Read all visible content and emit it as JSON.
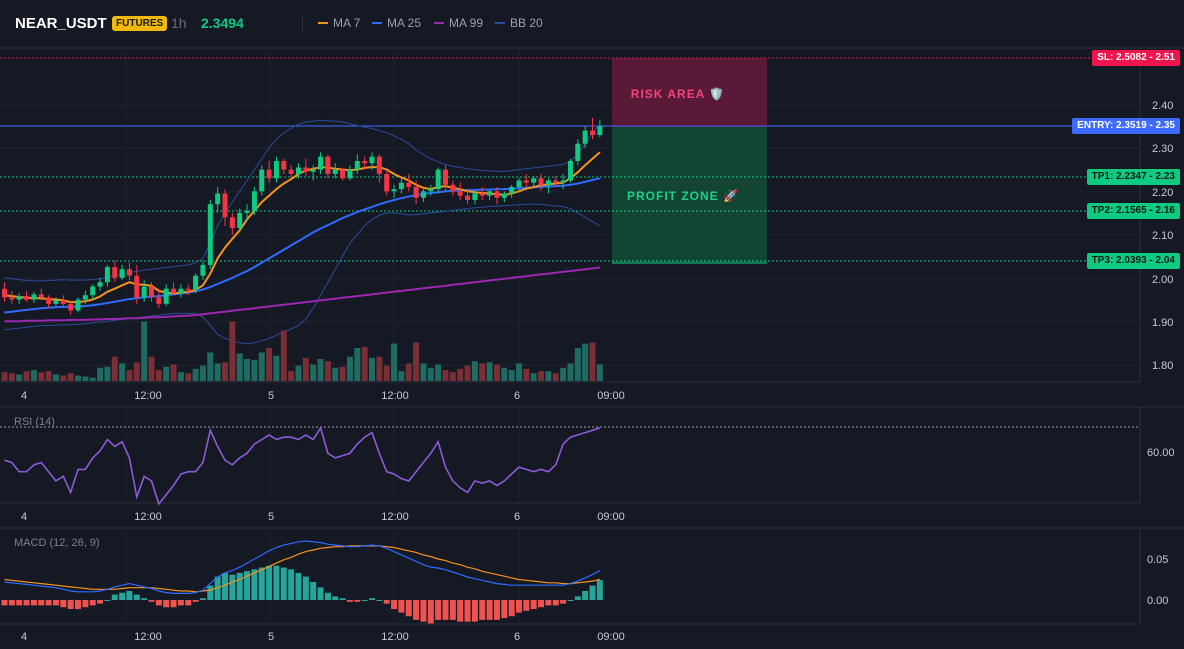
{
  "header": {
    "symbol": "NEAR_USDT",
    "badge": "FUTURES",
    "timeframe": "1h",
    "last_price": "2.3494",
    "indicators": [
      {
        "label": "MA 7",
        "color": "#f7931a"
      },
      {
        "label": "MA 25",
        "color": "#2f6bff"
      },
      {
        "label": "MA 99",
        "color": "#9c27b0"
      },
      {
        "label": "BB 20",
        "color": "#2a4c9a"
      }
    ]
  },
  "colors": {
    "up": "#26a69a",
    "up_bright": "#0ecb81",
    "down": "#f23645",
    "entry": "#3d6bff",
    "sl": "#f0144f",
    "tp": "#0ecb81"
  },
  "price_axis": {
    "ticks": [
      "2.40",
      "2.30",
      "2.20",
      "2.10",
      "2.00",
      "1.90",
      "1.80"
    ]
  },
  "time_axis": {
    "ticks": [
      "4",
      "12:00",
      "5",
      "12:00",
      "6",
      "09:00"
    ]
  },
  "levels": {
    "sl": "SL: 2.5082 - 2.51",
    "entry": "ENTRY: 2.3519 - 2.35",
    "tp1": "TP1: 2.2347 - 2.23",
    "tp2": "TP2: 2.1565 - 2.16",
    "tp3": "TP3: 2.0393 - 2.04"
  },
  "zones": {
    "risk": "RISK AREA 🛡️",
    "profit": "PROFIT ZONE 🚀"
  },
  "rsi": {
    "title": "RSI (14)",
    "tick": "60.00"
  },
  "macd": {
    "title": "MACD (12, 26, 9)",
    "ticks": [
      "0.05",
      "0.00"
    ]
  },
  "chart_data": {
    "type": "candlestick",
    "candles": [
      [
        1.975,
        1.99,
        1.945,
        1.955
      ],
      [
        1.955,
        1.97,
        1.94,
        1.95
      ],
      [
        1.95,
        1.965,
        1.94,
        1.958
      ],
      [
        1.958,
        1.97,
        1.945,
        1.95
      ],
      [
        1.95,
        1.968,
        1.942,
        1.962
      ],
      [
        1.962,
        1.975,
        1.948,
        1.955
      ],
      [
        1.955,
        1.96,
        1.93,
        1.94
      ],
      [
        1.94,
        1.955,
        1.935,
        1.948
      ],
      [
        1.948,
        1.96,
        1.935,
        1.94
      ],
      [
        1.94,
        1.945,
        1.915,
        1.925
      ],
      [
        1.925,
        1.955,
        1.92,
        1.95
      ],
      [
        1.95,
        1.97,
        1.94,
        1.96
      ],
      [
        1.96,
        1.985,
        1.95,
        1.98
      ],
      [
        1.98,
        2.0,
        1.97,
        1.99
      ],
      [
        1.99,
        2.03,
        1.98,
        2.025
      ],
      [
        2.025,
        2.04,
        1.99,
        2.0
      ],
      [
        2.0,
        2.03,
        1.995,
        2.02
      ],
      [
        2.02,
        2.035,
        1.995,
        2.005
      ],
      [
        2.005,
        2.03,
        1.94,
        1.955
      ],
      [
        1.955,
        1.995,
        1.945,
        1.98
      ],
      [
        1.98,
        1.99,
        1.945,
        1.955
      ],
      [
        1.955,
        1.975,
        1.93,
        1.94
      ],
      [
        1.94,
        1.985,
        1.935,
        1.975
      ],
      [
        1.975,
        1.99,
        1.96,
        1.965
      ],
      [
        1.965,
        1.985,
        1.955,
        1.975
      ],
      [
        1.975,
        1.985,
        1.96,
        1.972
      ],
      [
        1.972,
        2.01,
        1.965,
        2.005
      ],
      [
        2.005,
        2.04,
        1.995,
        2.03
      ],
      [
        2.03,
        2.18,
        2.02,
        2.17
      ],
      [
        2.17,
        2.21,
        2.15,
        2.195
      ],
      [
        2.195,
        2.205,
        2.12,
        2.14
      ],
      [
        2.14,
        2.15,
        2.1,
        2.115
      ],
      [
        2.115,
        2.16,
        2.105,
        2.15
      ],
      [
        2.15,
        2.17,
        2.13,
        2.155
      ],
      [
        2.155,
        2.21,
        2.145,
        2.2
      ],
      [
        2.2,
        2.26,
        2.19,
        2.25
      ],
      [
        2.25,
        2.27,
        2.22,
        2.23
      ],
      [
        2.23,
        2.28,
        2.22,
        2.27
      ],
      [
        2.27,
        2.275,
        2.24,
        2.25
      ],
      [
        2.25,
        2.26,
        2.23,
        2.24
      ],
      [
        2.24,
        2.265,
        2.23,
        2.255
      ],
      [
        2.255,
        2.275,
        2.235,
        2.245
      ],
      [
        2.245,
        2.26,
        2.225,
        2.25
      ],
      [
        2.25,
        2.29,
        2.24,
        2.28
      ],
      [
        2.28,
        2.285,
        2.23,
        2.24
      ],
      [
        2.24,
        2.265,
        2.23,
        2.25
      ],
      [
        2.25,
        2.255,
        2.225,
        2.23
      ],
      [
        2.23,
        2.26,
        2.225,
        2.25
      ],
      [
        2.25,
        2.285,
        2.24,
        2.27
      ],
      [
        2.27,
        2.28,
        2.25,
        2.265
      ],
      [
        2.265,
        2.29,
        2.25,
        2.28
      ],
      [
        2.28,
        2.285,
        2.22,
        2.24
      ],
      [
        2.24,
        2.25,
        2.19,
        2.2
      ],
      [
        2.2,
        2.215,
        2.185,
        2.205
      ],
      [
        2.205,
        2.23,
        2.195,
        2.22
      ],
      [
        2.22,
        2.24,
        2.2,
        2.21
      ],
      [
        2.21,
        2.225,
        2.17,
        2.185
      ],
      [
        2.185,
        2.205,
        2.175,
        2.2
      ],
      [
        2.2,
        2.215,
        2.19,
        2.205
      ],
      [
        2.205,
        2.255,
        2.195,
        2.25
      ],
      [
        2.25,
        2.26,
        2.2,
        2.215
      ],
      [
        2.215,
        2.225,
        2.19,
        2.2
      ],
      [
        2.2,
        2.22,
        2.18,
        2.19
      ],
      [
        2.19,
        2.205,
        2.17,
        2.18
      ],
      [
        2.18,
        2.2,
        2.17,
        2.195
      ],
      [
        2.195,
        2.21,
        2.18,
        2.19
      ],
      [
        2.19,
        2.205,
        2.18,
        2.2
      ],
      [
        2.2,
        2.21,
        2.17,
        2.185
      ],
      [
        2.185,
        2.2,
        2.175,
        2.195
      ],
      [
        2.195,
        2.215,
        2.185,
        2.21
      ],
      [
        2.21,
        2.23,
        2.2,
        2.225
      ],
      [
        2.225,
        2.24,
        2.21,
        2.22
      ],
      [
        2.22,
        2.235,
        2.21,
        2.23
      ],
      [
        2.23,
        2.24,
        2.2,
        2.215
      ],
      [
        2.215,
        2.23,
        2.195,
        2.225
      ],
      [
        2.225,
        2.235,
        2.21,
        2.22
      ],
      [
        2.22,
        2.24,
        2.205,
        2.225
      ],
      [
        2.225,
        2.275,
        2.22,
        2.27
      ],
      [
        2.27,
        2.32,
        2.26,
        2.31
      ],
      [
        2.31,
        2.35,
        2.3,
        2.34
      ],
      [
        2.34,
        2.37,
        2.32,
        2.33
      ],
      [
        2.33,
        2.365,
        2.325,
        2.35
      ]
    ],
    "volume": [
      8,
      7,
      6,
      9,
      10,
      8,
      9,
      6,
      5,
      7,
      5,
      4,
      3,
      12,
      13,
      22,
      16,
      10,
      17,
      54,
      22,
      10,
      13,
      15,
      8,
      7,
      11,
      14,
      26,
      16,
      17,
      54,
      25,
      20,
      19,
      26,
      30,
      23,
      46,
      9,
      14,
      21,
      15,
      20,
      18,
      12,
      13,
      22,
      30,
      31,
      21,
      22,
      14,
      34,
      9,
      16,
      35,
      16,
      12,
      15,
      10,
      8,
      11,
      14,
      18,
      16,
      17,
      15,
      12,
      10,
      16,
      11,
      7,
      9,
      9,
      7,
      12,
      16,
      30,
      34,
      35,
      15
    ],
    "ma7": [
      1.96,
      1.958,
      1.956,
      1.954,
      1.953,
      1.953,
      1.951,
      1.95,
      1.948,
      1.944,
      1.944,
      1.946,
      1.95,
      1.957,
      1.968,
      1.975,
      1.983,
      1.99,
      1.985,
      1.984,
      1.982,
      1.97,
      1.966,
      1.964,
      1.966,
      1.968,
      1.972,
      1.983,
      2.01,
      2.045,
      2.07,
      2.09,
      2.11,
      2.135,
      2.155,
      2.175,
      2.19,
      2.205,
      2.218,
      2.228,
      2.24,
      2.248,
      2.252,
      2.256,
      2.255,
      2.252,
      2.25,
      2.249,
      2.25,
      2.254,
      2.256,
      2.256,
      2.25,
      2.24,
      2.232,
      2.225,
      2.215,
      2.208,
      2.205,
      2.21,
      2.212,
      2.208,
      2.205,
      2.2,
      2.198,
      2.196,
      2.195,
      2.193,
      2.192,
      2.195,
      2.2,
      2.206,
      2.21,
      2.214,
      2.216,
      2.218,
      2.22,
      2.23,
      2.244,
      2.26,
      2.275,
      2.29
    ],
    "ma25": [
      1.92,
      1.922,
      1.924,
      1.926,
      1.928,
      1.93,
      1.931,
      1.932,
      1.933,
      1.933,
      1.934,
      1.935,
      1.937,
      1.939,
      1.942,
      1.945,
      1.948,
      1.951,
      1.953,
      1.955,
      1.957,
      1.958,
      1.96,
      1.962,
      1.964,
      1.966,
      1.969,
      1.973,
      1.979,
      1.986,
      1.993,
      2.0,
      2.008,
      2.016,
      2.025,
      2.035,
      2.045,
      2.055,
      2.065,
      2.075,
      2.085,
      2.095,
      2.105,
      2.114,
      2.122,
      2.13,
      2.138,
      2.145,
      2.152,
      2.158,
      2.164,
      2.17,
      2.175,
      2.18,
      2.184,
      2.188,
      2.191,
      2.194,
      2.196,
      2.198,
      2.2,
      2.201,
      2.202,
      2.203,
      2.203,
      2.204,
      2.204,
      2.205,
      2.205,
      2.206,
      2.207,
      2.208,
      2.209,
      2.21,
      2.211,
      2.212,
      2.213,
      2.215,
      2.218,
      2.222,
      2.226,
      2.23
    ],
    "ma99": [
      1.9,
      1.9,
      1.9,
      1.901,
      1.901,
      1.901,
      1.902,
      1.902,
      1.902,
      1.903,
      1.903,
      1.903,
      1.904,
      1.904,
      1.905,
      1.905,
      1.906,
      1.907,
      1.907,
      1.908,
      1.909,
      1.909,
      1.91,
      1.911,
      1.912,
      1.913,
      1.914,
      1.916,
      1.918,
      1.92,
      1.922,
      1.924,
      1.926,
      1.928,
      1.93,
      1.932,
      1.934,
      1.936,
      1.938,
      1.94,
      1.942,
      1.944,
      1.946,
      1.948,
      1.95,
      1.952,
      1.954,
      1.956,
      1.958,
      1.96,
      1.962,
      1.964,
      1.966,
      1.968,
      1.97,
      1.972,
      1.974,
      1.976,
      1.978,
      1.98,
      1.982,
      1.984,
      1.986,
      1.988,
      1.99,
      1.992,
      1.994,
      1.996,
      1.998,
      2.0,
      2.002,
      2.004,
      2.006,
      2.008,
      2.01,
      2.012,
      2.014,
      2.016,
      2.018,
      2.02,
      2.022,
      2.024
    ],
    "bb_upper": [
      2.0,
      1.998,
      1.996,
      1.994,
      1.993,
      1.993,
      1.994,
      1.995,
      1.996,
      1.995,
      1.995,
      1.995,
      1.996,
      1.998,
      2.002,
      2.005,
      2.009,
      2.013,
      2.015,
      2.018,
      2.02,
      2.022,
      2.024,
      2.026,
      2.028,
      2.03,
      2.035,
      2.045,
      2.08,
      2.12,
      2.15,
      2.175,
      2.2,
      2.225,
      2.25,
      2.275,
      2.3,
      2.32,
      2.335,
      2.345,
      2.355,
      2.36,
      2.362,
      2.364,
      2.363,
      2.362,
      2.36,
      2.356,
      2.352,
      2.348,
      2.345,
      2.34,
      2.335,
      2.328,
      2.32,
      2.31,
      2.295,
      2.285,
      2.275,
      2.268,
      2.262,
      2.258,
      2.255,
      2.252,
      2.25,
      2.248,
      2.247,
      2.246,
      2.246,
      2.248,
      2.25,
      2.252,
      2.254,
      2.256,
      2.258,
      2.26,
      2.262,
      2.27,
      2.285,
      2.31,
      2.335,
      2.355
    ],
    "bb_lower": [
      1.88,
      1.882,
      1.884,
      1.886,
      1.888,
      1.89,
      1.89,
      1.891,
      1.892,
      1.892,
      1.893,
      1.894,
      1.896,
      1.898,
      1.9,
      1.902,
      1.904,
      1.906,
      1.908,
      1.91,
      1.912,
      1.914,
      1.916,
      1.918,
      1.918,
      1.918,
      1.918,
      1.91,
      1.89,
      1.87,
      1.86,
      1.855,
      1.85,
      1.848,
      1.85,
      1.855,
      1.86,
      1.868,
      1.875,
      1.882,
      1.89,
      1.905,
      1.93,
      1.96,
      1.99,
      2.02,
      2.05,
      2.08,
      2.1,
      2.12,
      2.135,
      2.145,
      2.15,
      2.15,
      2.148,
      2.146,
      2.146,
      2.148,
      2.15,
      2.152,
      2.154,
      2.156,
      2.158,
      2.16,
      2.162,
      2.163,
      2.165,
      2.166,
      2.167,
      2.168,
      2.169,
      2.17,
      2.17,
      2.17,
      2.168,
      2.166,
      2.165,
      2.16,
      2.15,
      2.14,
      2.13,
      2.12
    ],
    "rsi": [
      59,
      58,
      54,
      54,
      57,
      58,
      54,
      50,
      52,
      45,
      55,
      55,
      60,
      63,
      68,
      65,
      67,
      60,
      43,
      52,
      50,
      40,
      44,
      48,
      53,
      54,
      54,
      58,
      72,
      65,
      59,
      57,
      60,
      62,
      66,
      68,
      70,
      68,
      69,
      69,
      68,
      70,
      68,
      73,
      62,
      60,
      61,
      62,
      66,
      69,
      71,
      62,
      54,
      53,
      51,
      50,
      54,
      58,
      62,
      67,
      56,
      50,
      47,
      45,
      50,
      49,
      50,
      48,
      50,
      53,
      56,
      55,
      54,
      55,
      54,
      57,
      66,
      69,
      70,
      71,
      72,
      73
    ],
    "macd": [
      0.022,
      0.021,
      0.02,
      0.019,
      0.018,
      0.017,
      0.016,
      0.015,
      0.013,
      0.011,
      0.01,
      0.01,
      0.01,
      0.011,
      0.013,
      0.016,
      0.018,
      0.02,
      0.018,
      0.016,
      0.014,
      0.011,
      0.009,
      0.008,
      0.008,
      0.008,
      0.009,
      0.012,
      0.02,
      0.028,
      0.033,
      0.036,
      0.04,
      0.045,
      0.05,
      0.055,
      0.06,
      0.064,
      0.067,
      0.069,
      0.071,
      0.072,
      0.071,
      0.07,
      0.068,
      0.067,
      0.066,
      0.065,
      0.065,
      0.066,
      0.067,
      0.066,
      0.063,
      0.059,
      0.055,
      0.051,
      0.047,
      0.043,
      0.04,
      0.039,
      0.037,
      0.034,
      0.031,
      0.028,
      0.026,
      0.024,
      0.022,
      0.02,
      0.019,
      0.018,
      0.018,
      0.018,
      0.018,
      0.018,
      0.018,
      0.018,
      0.018,
      0.02,
      0.023,
      0.027,
      0.031,
      0.036
    ],
    "macd_signal": [
      0.025,
      0.024,
      0.023,
      0.022,
      0.021,
      0.02,
      0.019,
      0.018,
      0.017,
      0.016,
      0.015,
      0.014,
      0.013,
      0.013,
      0.013,
      0.013,
      0.014,
      0.015,
      0.015,
      0.015,
      0.015,
      0.014,
      0.013,
      0.012,
      0.011,
      0.011,
      0.01,
      0.011,
      0.012,
      0.015,
      0.018,
      0.022,
      0.025,
      0.029,
      0.033,
      0.037,
      0.041,
      0.045,
      0.049,
      0.052,
      0.056,
      0.059,
      0.061,
      0.063,
      0.064,
      0.065,
      0.065,
      0.066,
      0.066,
      0.066,
      0.066,
      0.066,
      0.065,
      0.064,
      0.062,
      0.06,
      0.058,
      0.055,
      0.053,
      0.05,
      0.048,
      0.045,
      0.043,
      0.04,
      0.038,
      0.035,
      0.033,
      0.031,
      0.029,
      0.027,
      0.025,
      0.024,
      0.023,
      0.022,
      0.021,
      0.021,
      0.02,
      0.02,
      0.021,
      0.022,
      0.023,
      0.025
    ]
  }
}
